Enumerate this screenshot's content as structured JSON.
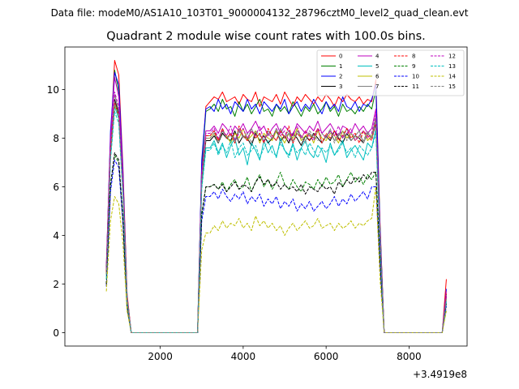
{
  "chart_data": {
    "type": "line",
    "suptitle": "Data file: modeM0/AS1A10_103T01_9000004132_28796cztM0_level2_quad_clean.evt",
    "title": "Quadrant 2 module wise count rates with 100.0s bins.",
    "xlabel": "",
    "ylabel": "",
    "x_offset_label": "+3.4919e8",
    "xlim": [
      -300,
      9400
    ],
    "ylim": [
      -0.55,
      11.75
    ],
    "x_ticks": [
      2000,
      4000,
      6000,
      8000
    ],
    "y_ticks": [
      0,
      2,
      4,
      6,
      8,
      10
    ],
    "x_tick_labels": [
      "2000",
      "4000",
      "6000",
      "8000"
    ],
    "y_tick_labels": [
      "0",
      "2",
      "4",
      "6",
      "8",
      "10"
    ],
    "x": [
      700,
      800,
      900,
      1000,
      1100,
      1200,
      1300,
      1400,
      1500,
      1600,
      1700,
      1800,
      1900,
      2000,
      2100,
      2200,
      2300,
      2400,
      2500,
      2600,
      2700,
      2800,
      2900,
      3000,
      3100,
      3200,
      3300,
      3400,
      3500,
      3600,
      3700,
      3800,
      3900,
      4000,
      4100,
      4200,
      4300,
      4400,
      4500,
      4600,
      4700,
      4800,
      4900,
      5000,
      5100,
      5200,
      5300,
      5400,
      5500,
      5600,
      5700,
      5800,
      5900,
      6000,
      6100,
      6200,
      6300,
      6400,
      6500,
      6600,
      6700,
      6800,
      6900,
      7000,
      7100,
      7200,
      7300,
      7400,
      7500,
      7600,
      7700,
      7800,
      7900,
      8000,
      8100,
      8200,
      8300,
      8400,
      8500,
      8600,
      8700,
      8800,
      8900
    ],
    "series": [
      {
        "name": "0",
        "color": "#ff0000",
        "dash": "solid",
        "plateau": [
          9.5,
          9.7,
          9.6,
          9.9,
          9.5,
          9.6,
          9.7,
          9.4,
          9.8,
          9.6,
          9.5,
          9.9,
          9.3,
          9.7,
          9.6,
          9.5,
          9.8,
          9.4,
          9.9,
          9.6,
          9.3,
          9.7,
          9.5,
          9.8,
          9.6,
          9.4,
          9.7,
          9.5,
          9.8,
          9.6,
          9.3,
          9.7,
          9.5,
          9.8,
          9.6,
          9.5,
          9.7,
          9.4,
          9.6,
          9.5
        ],
        "peak": [
          2.4,
          7.8,
          11.2,
          10.6,
          6.8,
          1.6
        ],
        "start": [
          6.9,
          9.3
        ],
        "end": [
          10.4,
          4.5
        ],
        "tail": 2.2
      },
      {
        "name": "1",
        "color": "#008000",
        "dash": "solid",
        "plateau": [
          9.2,
          9.4,
          9.1,
          9.6,
          9.2,
          9.3,
          8.9,
          9.5,
          9.1,
          9.4,
          9.0,
          9.3,
          9.6,
          9.1,
          9.2,
          8.9,
          9.4,
          9.1,
          9.3,
          9.0,
          9.5,
          9.2,
          8.9,
          9.3,
          9.1,
          9.4,
          9.0,
          9.2,
          9.5,
          9.1,
          9.3,
          8.9,
          9.4,
          9.1,
          9.2,
          9.0,
          9.3,
          9.1,
          9.4,
          9.2
        ],
        "peak": [
          2.7,
          8.0,
          10.8,
          9.9,
          6.5,
          1.5
        ],
        "start": [
          6.8,
          9.1
        ],
        "end": [
          10.0,
          4.4
        ],
        "tail": 1.6
      },
      {
        "name": "2",
        "color": "#0000ff",
        "dash": "solid",
        "plateau": [
          9.3,
          9.1,
          9.6,
          9.2,
          9.4,
          9.0,
          9.5,
          9.3,
          9.1,
          9.6,
          9.2,
          9.4,
          9.0,
          9.5,
          9.3,
          9.1,
          9.4,
          9.2,
          9.6,
          9.0,
          9.3,
          9.5,
          9.1,
          9.4,
          9.2,
          9.6,
          9.3,
          9.0,
          9.5,
          9.2,
          9.4,
          9.1,
          9.7,
          9.3,
          9.2,
          9.5,
          9.1,
          9.4,
          9.3,
          9.6
        ],
        "peak": [
          2.6,
          8.3,
          10.7,
          10.2,
          6.6,
          1.4
        ],
        "start": [
          7.1,
          9.2
        ],
        "end": [
          10.2,
          4.3
        ],
        "tail": 1.8
      },
      {
        "name": "3",
        "color": "#000000",
        "dash": "solid",
        "plateau": [
          7.9,
          8.1,
          7.8,
          8.2,
          8.0,
          7.9,
          8.3,
          7.8,
          8.1,
          8.0,
          7.7,
          8.2,
          7.9,
          8.1,
          7.8,
          8.0,
          8.3,
          7.9,
          8.1,
          7.8,
          8.2,
          8.0,
          7.7,
          8.1,
          7.9,
          8.2,
          8.0,
          7.8,
          8.1,
          7.9,
          8.3,
          8.0,
          7.8,
          8.2,
          7.9,
          8.1,
          8.0,
          7.8,
          8.2,
          8.0
        ],
        "peak": [
          2.5,
          7.6,
          9.6,
          9.0,
          5.9,
          1.4
        ],
        "start": [
          6.2,
          7.9
        ],
        "end": [
          8.6,
          3.9
        ],
        "tail": 1.5
      },
      {
        "name": "4",
        "color": "#bf00bf",
        "dash": "solid",
        "plateau": [
          8.3,
          8.5,
          8.2,
          8.6,
          8.4,
          8.1,
          8.5,
          8.3,
          8.6,
          8.2,
          8.4,
          8.7,
          8.3,
          8.5,
          8.1,
          8.4,
          8.6,
          8.2,
          8.5,
          8.3,
          8.1,
          8.6,
          8.4,
          8.2,
          8.5,
          8.3,
          8.7,
          8.2,
          8.4,
          8.6,
          8.3,
          8.1,
          8.5,
          8.4,
          8.2,
          8.6,
          8.3,
          8.5,
          8.2,
          8.4
        ],
        "peak": [
          2.8,
          8.1,
          10.5,
          9.7,
          6.3,
          1.5
        ],
        "start": [
          6.6,
          8.3
        ],
        "end": [
          9.2,
          4.1
        ],
        "tail": 1.7
      },
      {
        "name": "5",
        "color": "#00bfbf",
        "dash": "solid",
        "plateau": [
          7.6,
          7.9,
          7.4,
          7.8,
          7.2,
          7.7,
          8.0,
          7.3,
          7.6,
          6.9,
          7.8,
          7.5,
          7.1,
          7.9,
          7.4,
          7.7,
          7.2,
          8.0,
          7.5,
          7.3,
          7.8,
          7.1,
          7.6,
          7.9,
          7.4,
          7.2,
          7.7,
          7.5,
          7.0,
          7.8,
          7.3,
          7.6,
          7.9,
          7.2,
          7.5,
          7.7,
          7.4,
          7.1,
          7.8,
          7.6
        ],
        "peak": [
          2.3,
          7.2,
          9.3,
          8.8,
          5.7,
          1.3
        ],
        "start": [
          6.0,
          7.6
        ],
        "end": [
          8.4,
          3.7
        ],
        "tail": 1.3
      },
      {
        "name": "6",
        "color": "#bfbf00",
        "dash": "solid",
        "plateau": [
          8.0,
          8.2,
          7.9,
          8.3,
          8.1,
          7.8,
          8.2,
          8.0,
          8.4,
          7.9,
          8.1,
          8.3,
          7.8,
          8.2,
          8.0,
          7.9,
          8.3,
          8.1,
          7.8,
          8.2,
          8.0,
          8.4,
          7.9,
          8.1,
          8.2,
          7.8,
          8.3,
          8.0,
          7.9,
          8.2,
          8.1,
          7.8,
          8.3,
          8.0,
          8.2,
          7.9,
          8.1,
          8.3,
          7.9,
          8.1
        ],
        "peak": [
          2.4,
          7.4,
          9.4,
          8.9,
          5.8,
          1.4
        ],
        "start": [
          6.3,
          8.0
        ],
        "end": [
          8.8,
          3.8
        ],
        "tail": 1.4
      },
      {
        "name": "7",
        "color": "#808080",
        "dash": "solid",
        "plateau": [
          8.1,
          8.3,
          7.9,
          8.4,
          8.0,
          8.2,
          7.8,
          8.3,
          8.1,
          7.9,
          8.4,
          8.0,
          8.2,
          7.8,
          8.3,
          8.1,
          7.9,
          8.4,
          8.0,
          8.2,
          7.8,
          8.3,
          8.1,
          7.9,
          8.2,
          8.0,
          8.4,
          7.8,
          8.1,
          8.3,
          7.9,
          8.2,
          8.0,
          8.4,
          7.9,
          8.1,
          8.3,
          7.8,
          8.2,
          8.0
        ],
        "peak": [
          2.6,
          7.7,
          9.8,
          9.1,
          6.0,
          1.4
        ],
        "start": [
          6.4,
          8.1
        ],
        "end": [
          8.9,
          3.9
        ],
        "tail": 1.5
      },
      {
        "name": "8",
        "color": "#ff0000",
        "dash": "dashed",
        "plateau": [
          8.1,
          8.3,
          7.9,
          8.4,
          8.0,
          8.2,
          7.8,
          8.5,
          8.1,
          7.9,
          8.3,
          8.0,
          8.2,
          7.8,
          8.4,
          8.1,
          7.9,
          8.3,
          8.0,
          8.5,
          7.8,
          8.2,
          8.0,
          8.3,
          7.9,
          8.1,
          8.4,
          7.8,
          8.2,
          8.0,
          8.3,
          7.9,
          8.1,
          8.4,
          8.0,
          8.2,
          7.8,
          8.3,
          8.1,
          7.9
        ],
        "peak": [
          2.5,
          7.5,
          9.5,
          8.9,
          5.9,
          1.4
        ],
        "start": [
          6.3,
          8.1
        ],
        "end": [
          8.7,
          3.9
        ],
        "tail": 1.6
      },
      {
        "name": "9",
        "color": "#008000",
        "dash": "dashed",
        "plateau": [
          6.0,
          6.1,
          5.9,
          6.2,
          5.8,
          6.1,
          6.3,
          5.9,
          6.0,
          6.4,
          5.8,
          6.2,
          6.5,
          6.0,
          6.3,
          5.9,
          6.2,
          6.6,
          6.1,
          5.9,
          6.3,
          6.0,
          5.8,
          6.2,
          6.1,
          5.9,
          6.3,
          6.0,
          6.4,
          6.1,
          6.2,
          6.5,
          6.0,
          6.3,
          6.6,
          6.2,
          6.4,
          6.1,
          6.5,
          6.3
        ],
        "peak": [
          2.0,
          6.0,
          7.3,
          7.0,
          4.6,
          1.1
        ],
        "start": [
          4.8,
          6.0
        ],
        "end": [
          6.6,
          3.0
        ],
        "tail": 1.2
      },
      {
        "name": "10",
        "color": "#0000ff",
        "dash": "dashed",
        "plateau": [
          5.6,
          5.8,
          5.5,
          5.9,
          5.6,
          5.4,
          5.7,
          5.5,
          5.8,
          5.3,
          5.6,
          5.4,
          5.7,
          5.2,
          5.5,
          5.3,
          5.6,
          5.1,
          5.4,
          5.2,
          5.5,
          5.0,
          5.3,
          5.1,
          5.4,
          5.0,
          5.2,
          5.4,
          5.1,
          5.3,
          5.6,
          5.2,
          5.5,
          5.3,
          5.7,
          5.4,
          5.6,
          5.8,
          5.5,
          6.0
        ],
        "peak": [
          1.9,
          5.8,
          7.1,
          6.8,
          4.5,
          1.0
        ],
        "start": [
          4.6,
          5.6
        ],
        "end": [
          6.0,
          2.8
        ],
        "tail": 1.1
      },
      {
        "name": "11",
        "color": "#000000",
        "dash": "dashed",
        "plateau": [
          6.0,
          6.1,
          5.9,
          6.1,
          5.8,
          6.0,
          6.2,
          5.9,
          6.1,
          6.0,
          5.8,
          6.2,
          6.4,
          6.1,
          6.3,
          6.0,
          6.2,
          5.9,
          6.1,
          5.9,
          6.0,
          5.8,
          6.1,
          5.7,
          6.0,
          5.9,
          5.8,
          6.1,
          5.9,
          6.0,
          5.7,
          6.2,
          6.0,
          6.3,
          6.1,
          6.4,
          6.2,
          6.5,
          6.3,
          6.6
        ],
        "peak": [
          2.0,
          6.1,
          7.4,
          7.1,
          4.7,
          1.1
        ],
        "start": [
          4.9,
          6.0
        ],
        "end": [
          6.6,
          3.0
        ],
        "tail": 1.2
      },
      {
        "name": "12",
        "color": "#bf00bf",
        "dash": "dashed",
        "plateau": [
          8.2,
          8.4,
          8.0,
          8.3,
          8.1,
          8.5,
          7.9,
          8.2,
          8.4,
          8.0,
          8.3,
          8.1,
          8.5,
          7.9,
          8.2,
          8.0,
          8.4,
          8.1,
          8.3,
          7.9,
          8.2,
          8.5,
          8.0,
          8.3,
          8.1,
          7.9,
          8.4,
          8.2,
          8.0,
          8.3,
          8.1,
          8.5,
          8.0,
          8.2,
          8.4,
          7.9,
          8.1,
          8.3,
          8.0,
          8.2
        ],
        "peak": [
          2.6,
          7.8,
          9.9,
          9.3,
          6.1,
          1.4
        ],
        "start": [
          6.5,
          8.2
        ],
        "end": [
          9.0,
          4.0
        ],
        "tail": 1.5
      },
      {
        "name": "13",
        "color": "#00bfbf",
        "dash": "dashed",
        "plateau": [
          7.5,
          7.8,
          7.3,
          7.7,
          7.4,
          7.9,
          7.2,
          7.6,
          7.8,
          7.3,
          7.5,
          7.7,
          7.2,
          7.6,
          7.9,
          7.4,
          7.3,
          7.8,
          7.5,
          7.2,
          7.7,
          7.4,
          7.6,
          7.3,
          7.8,
          7.5,
          7.2,
          7.6,
          7.4,
          7.7,
          7.3,
          7.5,
          7.8,
          7.4,
          7.6,
          7.2,
          7.7,
          7.5,
          7.3,
          7.6
        ],
        "peak": [
          2.2,
          7.1,
          9.1,
          8.6,
          5.6,
          1.3
        ],
        "start": [
          5.9,
          7.5
        ],
        "end": [
          8.2,
          3.6
        ],
        "tail": 1.3
      },
      {
        "name": "14",
        "color": "#bfbf00",
        "dash": "dashed",
        "plateau": [
          4.1,
          4.4,
          4.2,
          4.6,
          4.3,
          4.5,
          4.4,
          4.7,
          4.3,
          4.5,
          4.2,
          4.8,
          4.4,
          4.6,
          4.3,
          4.5,
          4.2,
          4.4,
          4.0,
          4.3,
          4.5,
          4.2,
          4.4,
          4.6,
          4.3,
          4.4,
          4.7,
          4.3,
          4.4,
          4.5,
          4.2,
          4.5,
          4.3,
          4.4,
          4.6,
          4.3,
          4.5,
          4.4,
          4.6,
          4.7
        ],
        "peak": [
          1.7,
          4.6,
          5.6,
          5.3,
          3.7,
          0.9
        ],
        "start": [
          3.4,
          4.1
        ],
        "end": [
          6.0,
          2.2
        ],
        "tail": 0.9
      },
      {
        "name": "15",
        "color": "#808080",
        "dash": "dashed",
        "plateau": [
          8.0,
          8.2,
          7.8,
          8.3,
          8.0,
          8.1,
          7.9,
          8.4,
          8.0,
          8.2,
          7.8,
          8.3,
          8.1,
          7.9,
          8.2,
          8.0,
          8.4,
          7.8,
          8.1,
          8.3,
          7.9,
          8.2,
          8.0,
          7.8,
          8.3,
          8.1,
          7.9,
          8.2,
          8.0,
          8.4,
          7.8,
          8.1,
          8.3,
          7.9,
          8.2,
          8.0,
          8.1,
          7.9,
          8.3,
          8.0
        ],
        "peak": [
          2.4,
          7.4,
          9.5,
          8.9,
          5.8,
          1.4
        ],
        "start": [
          6.3,
          8.0
        ],
        "end": [
          8.7,
          3.9
        ],
        "tail": 1.4
      }
    ]
  }
}
